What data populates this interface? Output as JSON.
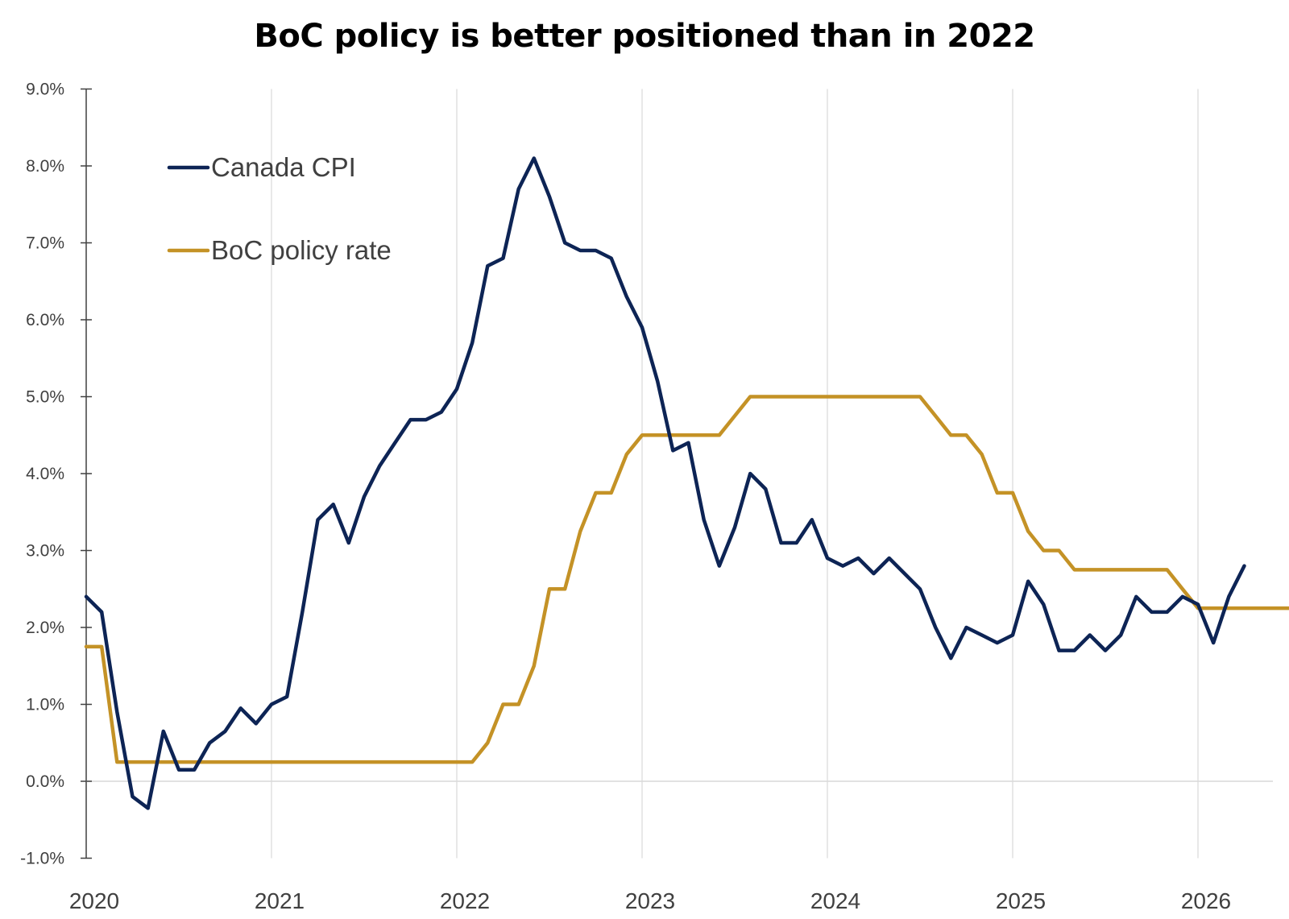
{
  "chart_data": {
    "type": "line",
    "title": "BoC policy is better positioned than in 2022",
    "xlabel": "",
    "ylabel": "",
    "ylim": [
      -1.0,
      9.0
    ],
    "xlim": [
      "2020-01",
      "2026-06"
    ],
    "x_unit": "month",
    "start_month": "2020-01",
    "grid": "vertical",
    "legend_position": "top-left",
    "yticks": [
      "-1.0%",
      "0.0%",
      "1.0%",
      "2.0%",
      "3.0%",
      "4.0%",
      "5.0%",
      "6.0%",
      "7.0%",
      "8.0%",
      "9.0%"
    ],
    "ytick_values": [
      -1,
      0,
      1,
      2,
      3,
      4,
      5,
      6,
      7,
      8,
      9
    ],
    "xticks": [
      "2020",
      "2021",
      "2022",
      "2023",
      "2024",
      "2025",
      "2026"
    ],
    "series": [
      {
        "name": "Canada CPI",
        "color": "#0d2455",
        "values": [
          2.4,
          2.2,
          0.9,
          -0.2,
          -0.35,
          0.65,
          0.15,
          0.15,
          0.5,
          0.65,
          0.95,
          0.75,
          1.0,
          1.1,
          2.2,
          3.4,
          3.6,
          3.1,
          3.7,
          4.1,
          4.4,
          4.7,
          4.7,
          4.8,
          5.1,
          5.7,
          6.7,
          6.8,
          7.7,
          8.1,
          7.6,
          7.0,
          6.9,
          6.9,
          6.8,
          6.3,
          5.9,
          5.2,
          4.3,
          4.4,
          3.4,
          2.8,
          3.3,
          4.0,
          3.8,
          3.1,
          3.1,
          3.4,
          2.9,
          2.8,
          2.9,
          2.7,
          2.9,
          2.7,
          2.5,
          2.0,
          1.6,
          2.0,
          1.9,
          1.8,
          1.9,
          2.6,
          2.3,
          1.7,
          1.7,
          1.9,
          1.7,
          1.9,
          2.4,
          2.2,
          2.2,
          2.4,
          2.3,
          1.8,
          2.4,
          2.8
        ]
      },
      {
        "name": "BoC policy rate",
        "color": "#c49226",
        "values": [
          1.75,
          1.75,
          0.25,
          0.25,
          0.25,
          0.25,
          0.25,
          0.25,
          0.25,
          0.25,
          0.25,
          0.25,
          0.25,
          0.25,
          0.25,
          0.25,
          0.25,
          0.25,
          0.25,
          0.25,
          0.25,
          0.25,
          0.25,
          0.25,
          0.25,
          0.25,
          0.5,
          1.0,
          1.0,
          1.5,
          2.5,
          2.5,
          3.25,
          3.75,
          3.75,
          4.25,
          4.5,
          4.5,
          4.5,
          4.5,
          4.5,
          4.5,
          4.75,
          5.0,
          5.0,
          5.0,
          5.0,
          5.0,
          5.0,
          5.0,
          5.0,
          5.0,
          5.0,
          5.0,
          5.0,
          4.75,
          4.5,
          4.5,
          4.25,
          3.75,
          3.75,
          3.25,
          3.0,
          3.0,
          2.75,
          2.75,
          2.75,
          2.75,
          2.75,
          2.75,
          2.75,
          2.5,
          2.25,
          2.25,
          2.25,
          2.25,
          2.25,
          2.25,
          2.25,
          2.25
        ]
      }
    ]
  }
}
